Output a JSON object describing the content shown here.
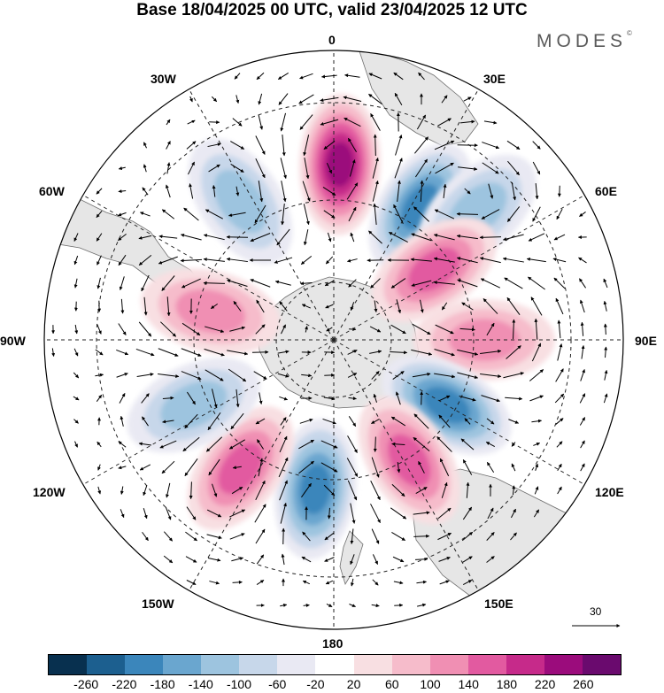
{
  "title": "Base 18/04/2025 00 UTC, valid 23/04/2025 12 UTC",
  "brand": "MODES",
  "brand_mark": "©",
  "longitude_labels": {
    "top": "0",
    "top_right": "30E",
    "right_upper": "60E",
    "right": "90E",
    "right_lower": "120E",
    "bottom_right": "150E",
    "bottom": "180",
    "bottom_left": "150W",
    "left_lower": "120W",
    "left": "90W",
    "left_upper": "60W",
    "top_left": "30W"
  },
  "reference_vector_label": "30",
  "colorbar": {
    "colors": [
      "#08304f",
      "#1c5f8f",
      "#3b86bb",
      "#6aa6cf",
      "#9dc4df",
      "#c7d7ea",
      "#e9e9f3",
      "#ffffff",
      "#f8dfe2",
      "#f6bccb",
      "#f08fb3",
      "#e25aa0",
      "#c62a8a",
      "#9b0c7c",
      "#6a0a6e"
    ],
    "ticks": [
      "-260",
      "-220",
      "-180",
      "-140",
      "-100",
      "-60",
      "-20",
      "20",
      "60",
      "100",
      "140",
      "180",
      "220",
      "260"
    ]
  },
  "map": {
    "projection": "south-polar-stereographic",
    "land_color": "#e6e6e6",
    "anomalies": [
      {
        "sign": "positive",
        "level": 6,
        "lon": 2,
        "lat": -44
      },
      {
        "sign": "negative",
        "level": 5,
        "lon": 33,
        "lat": -48
      },
      {
        "sign": "negative",
        "level": 3,
        "lon": 48,
        "lat": -40
      },
      {
        "sign": "positive",
        "level": 4,
        "lon": 55,
        "lat": -57
      },
      {
        "sign": "positive",
        "level": 3,
        "lon": 90,
        "lat": -50
      },
      {
        "sign": "negative",
        "level": 5,
        "lon": 120,
        "lat": -55
      },
      {
        "sign": "positive",
        "level": 4,
        "lon": 148,
        "lat": -52
      },
      {
        "sign": "negative",
        "level": 5,
        "lon": 187,
        "lat": -50
      },
      {
        "sign": "positive",
        "level": 4,
        "lon": 216,
        "lat": -48
      },
      {
        "sign": "negative",
        "level": 3,
        "lon": 245,
        "lat": -49
      },
      {
        "sign": "positive",
        "level": 3,
        "lon": 283,
        "lat": -56
      },
      {
        "sign": "negative",
        "level": 3,
        "lon": 326,
        "lat": -46
      }
    ]
  }
}
